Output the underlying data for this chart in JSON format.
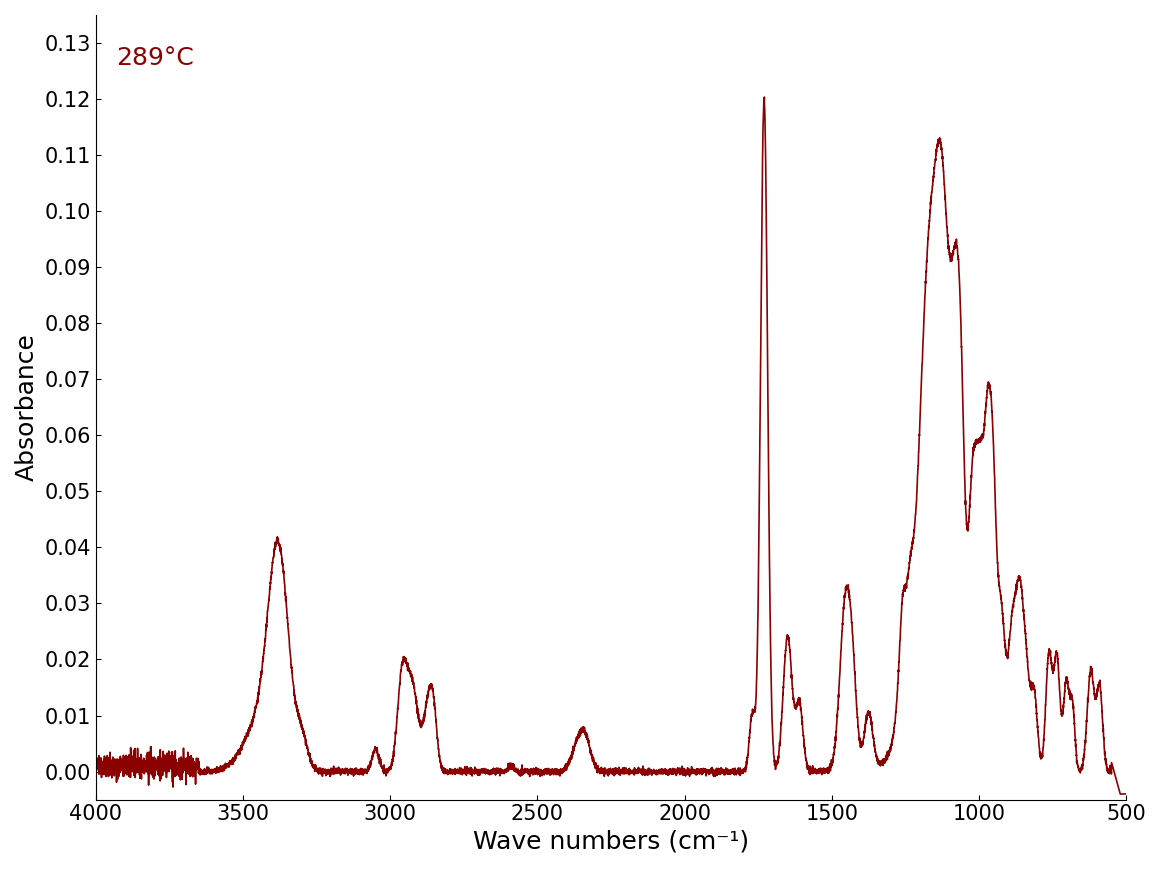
{
  "line_color": "#8B0000",
  "annotation_color": "#8B0000",
  "annotation_text": "289°C",
  "annotation_fontsize": 18,
  "xlabel": "Wave numbers (cm⁻¹)",
  "ylabel": "Absorbance",
  "xlabel_fontsize": 18,
  "ylabel_fontsize": 18,
  "tick_fontsize": 15,
  "xlim": [
    4000,
    500
  ],
  "ylim": [
    -0.005,
    0.135
  ],
  "yticks": [
    0.0,
    0.01,
    0.02,
    0.03,
    0.04,
    0.05,
    0.06,
    0.07,
    0.08,
    0.09,
    0.1,
    0.11,
    0.12,
    0.13
  ],
  "xticks": [
    4000,
    3500,
    3000,
    2500,
    2000,
    1500,
    1000,
    500
  ],
  "background_color": "#ffffff",
  "line_width": 1.2,
  "fig_width": 11.61,
  "fig_height": 8.69,
  "dpi": 100
}
